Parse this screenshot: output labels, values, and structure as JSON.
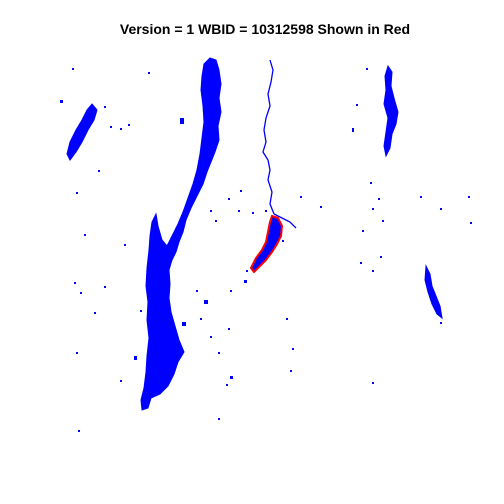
{
  "title": "Version = 1 WBID = 10312598 Shown in Red",
  "colors": {
    "water": "#0000ff",
    "highlight_outline": "#ff0000",
    "highlight_fill": "#0000ff",
    "background": "#ffffff"
  },
  "highlighted_feature": {
    "wbid": "10312598",
    "version": "1"
  }
}
